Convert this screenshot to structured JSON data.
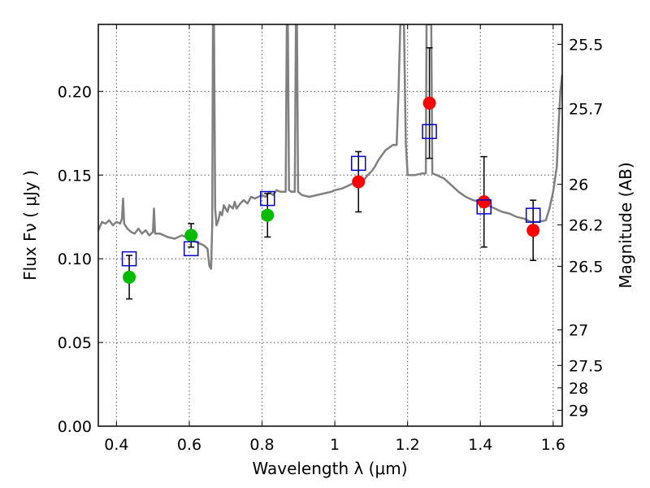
{
  "chart_data": {
    "type": "scatter",
    "xlabel": "Wavelength  λ (μm)",
    "ylabel": "Flux  Fν  ( μJy )",
    "ylabel_right": "Magnitude (AB)",
    "xlim": [
      0.35,
      1.625
    ],
    "ylim": [
      0.0,
      0.24
    ],
    "grid": true,
    "x_ticks": [
      {
        "value": 0.4,
        "label": "0.4"
      },
      {
        "value": 0.6,
        "label": "0.6"
      },
      {
        "value": 0.8,
        "label": "0.8"
      },
      {
        "value": 1.0,
        "label": "1"
      },
      {
        "value": 1.2,
        "label": "1.2"
      },
      {
        "value": 1.4,
        "label": "1.4"
      },
      {
        "value": 1.6,
        "label": "1.6"
      }
    ],
    "y_ticks": [
      {
        "value": 0.0,
        "label": "0.00"
      },
      {
        "value": 0.05,
        "label": "0.05"
      },
      {
        "value": 0.1,
        "label": "0.10"
      },
      {
        "value": 0.15,
        "label": "0.15"
      },
      {
        "value": 0.2,
        "label": "0.20"
      }
    ],
    "right_ticks": [
      {
        "flux": 0.2281,
        "label": "25.5"
      },
      {
        "flux": 0.1897,
        "label": "25.7"
      },
      {
        "flux": 0.1445,
        "label": "26"
      },
      {
        "flux": 0.1202,
        "label": "26.2"
      },
      {
        "flux": 0.0955,
        "label": "26.5"
      },
      {
        "flux": 0.0575,
        "label": "27"
      },
      {
        "flux": 0.0363,
        "label": "27.5"
      },
      {
        "flux": 0.0229,
        "label": "28"
      },
      {
        "flux": 0.0095,
        "label": "29"
      }
    ],
    "colors": {
      "model": "#808080",
      "green": "#00bb00",
      "red": "#ff0000",
      "square": "#0000cc",
      "errorbar": "#000000",
      "grid": "#555555"
    },
    "model_spectrum": [
      [
        0.35,
        0.117
      ],
      [
        0.36,
        0.122
      ],
      [
        0.37,
        0.121
      ],
      [
        0.38,
        0.123
      ],
      [
        0.39,
        0.12
      ],
      [
        0.4,
        0.122
      ],
      [
        0.41,
        0.121
      ],
      [
        0.415,
        0.124
      ],
      [
        0.418,
        0.136
      ],
      [
        0.421,
        0.121
      ],
      [
        0.43,
        0.118
      ],
      [
        0.44,
        0.116
      ],
      [
        0.45,
        0.115
      ],
      [
        0.46,
        0.118
      ],
      [
        0.47,
        0.115
      ],
      [
        0.48,
        0.117
      ],
      [
        0.49,
        0.114
      ],
      [
        0.5,
        0.116
      ],
      [
        0.503,
        0.13
      ],
      [
        0.506,
        0.115
      ],
      [
        0.52,
        0.115
      ],
      [
        0.54,
        0.113
      ],
      [
        0.56,
        0.112
      ],
      [
        0.58,
        0.114
      ],
      [
        0.6,
        0.112
      ],
      [
        0.62,
        0.11
      ],
      [
        0.64,
        0.108
      ],
      [
        0.65,
        0.106
      ],
      [
        0.655,
        0.096
      ],
      [
        0.66,
        0.094
      ],
      [
        0.663,
        0.12
      ],
      [
        0.665,
        0.24
      ],
      [
        0.668,
        0.24
      ],
      [
        0.671,
        0.13
      ],
      [
        0.675,
        0.12
      ],
      [
        0.68,
        0.123
      ],
      [
        0.685,
        0.128
      ],
      [
        0.69,
        0.126
      ],
      [
        0.695,
        0.132
      ],
      [
        0.7,
        0.13
      ],
      [
        0.705,
        0.128
      ],
      [
        0.71,
        0.132
      ],
      [
        0.72,
        0.13
      ],
      [
        0.725,
        0.134
      ],
      [
        0.73,
        0.13
      ],
      [
        0.74,
        0.133
      ],
      [
        0.75,
        0.135
      ],
      [
        0.76,
        0.133
      ],
      [
        0.77,
        0.137
      ],
      [
        0.78,
        0.136
      ],
      [
        0.79,
        0.137
      ],
      [
        0.8,
        0.138
      ],
      [
        0.81,
        0.137
      ],
      [
        0.82,
        0.14
      ],
      [
        0.83,
        0.138
      ],
      [
        0.84,
        0.141
      ],
      [
        0.85,
        0.14
      ],
      [
        0.86,
        0.14
      ],
      [
        0.865,
        0.14
      ],
      [
        0.868,
        0.24
      ],
      [
        0.871,
        0.24
      ],
      [
        0.874,
        0.141
      ],
      [
        0.88,
        0.14
      ],
      [
        0.89,
        0.14
      ],
      [
        0.893,
        0.24
      ],
      [
        0.896,
        0.24
      ],
      [
        0.899,
        0.14
      ],
      [
        0.91,
        0.138
      ],
      [
        0.93,
        0.137
      ],
      [
        0.95,
        0.138
      ],
      [
        0.97,
        0.139
      ],
      [
        0.99,
        0.14
      ],
      [
        1.0,
        0.141
      ],
      [
        1.02,
        0.142
      ],
      [
        1.04,
        0.144
      ],
      [
        1.06,
        0.146
      ],
      [
        1.08,
        0.147
      ],
      [
        1.09,
        0.15
      ],
      [
        1.1,
        0.152
      ],
      [
        1.11,
        0.155
      ],
      [
        1.12,
        0.159
      ],
      [
        1.13,
        0.162
      ],
      [
        1.14,
        0.165
      ],
      [
        1.16,
        0.168
      ],
      [
        1.17,
        0.168
      ],
      [
        1.175,
        0.2
      ],
      [
        1.18,
        0.24
      ],
      [
        1.19,
        0.24
      ],
      [
        1.195,
        0.17
      ],
      [
        1.2,
        0.15
      ],
      [
        1.22,
        0.15
      ],
      [
        1.24,
        0.151
      ],
      [
        1.25,
        0.151
      ],
      [
        1.252,
        0.24
      ],
      [
        1.255,
        0.24
      ],
      [
        1.262,
        0.24
      ],
      [
        1.265,
        0.24
      ],
      [
        1.268,
        0.151
      ],
      [
        1.28,
        0.15
      ],
      [
        1.3,
        0.148
      ],
      [
        1.32,
        0.144
      ],
      [
        1.34,
        0.14
      ],
      [
        1.36,
        0.137
      ],
      [
        1.38,
        0.135
      ],
      [
        1.4,
        0.134
      ],
      [
        1.42,
        0.132
      ],
      [
        1.44,
        0.13
      ],
      [
        1.46,
        0.128
      ],
      [
        1.48,
        0.127
      ],
      [
        1.5,
        0.125
      ],
      [
        1.52,
        0.124
      ],
      [
        1.54,
        0.122
      ],
      [
        1.56,
        0.122
      ],
      [
        1.58,
        0.123
      ],
      [
        1.59,
        0.13
      ],
      [
        1.6,
        0.14
      ],
      [
        1.61,
        0.155
      ],
      [
        1.615,
        0.18
      ],
      [
        1.62,
        0.2
      ],
      [
        1.625,
        0.21
      ]
    ],
    "observed_points": [
      {
        "x": 0.435,
        "y": 0.089,
        "err": 0.013,
        "color": "green"
      },
      {
        "x": 0.605,
        "y": 0.114,
        "err": 0.007,
        "color": "green"
      },
      {
        "x": 0.815,
        "y": 0.126,
        "err": 0.013,
        "color": "green"
      },
      {
        "x": 1.065,
        "y": 0.146,
        "err": 0.018,
        "color": "red"
      },
      {
        "x": 1.26,
        "y": 0.193,
        "err": 0.033,
        "color": "red"
      },
      {
        "x": 1.41,
        "y": 0.134,
        "err": 0.027,
        "color": "red"
      },
      {
        "x": 1.545,
        "y": 0.117,
        "err": 0.018,
        "color": "red"
      }
    ],
    "model_points": [
      {
        "x": 0.435,
        "y": 0.1
      },
      {
        "x": 0.605,
        "y": 0.106
      },
      {
        "x": 0.815,
        "y": 0.136
      },
      {
        "x": 1.065,
        "y": 0.157
      },
      {
        "x": 1.26,
        "y": 0.176
      },
      {
        "x": 1.41,
        "y": 0.131
      },
      {
        "x": 1.545,
        "y": 0.126
      }
    ]
  }
}
